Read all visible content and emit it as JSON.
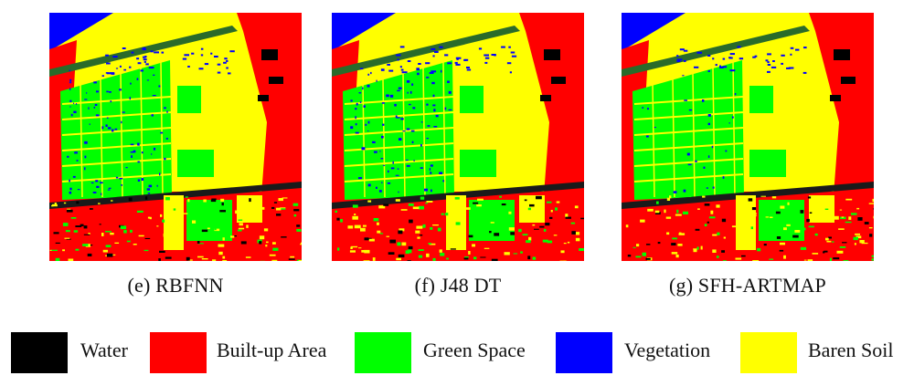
{
  "panels": [
    {
      "id": "e",
      "caption": "(e) RBFNN"
    },
    {
      "id": "f",
      "caption": "(f) J48 DT"
    },
    {
      "id": "g",
      "caption": "(g) SFH-ARTMAP"
    }
  ],
  "legend": [
    {
      "label": "Water",
      "color": "#000000"
    },
    {
      "label": "Built-up Area",
      "color": "#ff0000"
    },
    {
      "label": "Green Space",
      "color": "#00ff00"
    },
    {
      "label": "Vegetation",
      "color": "#0000ff"
    },
    {
      "label": "Baren Soil",
      "color": "#ffff00"
    }
  ]
}
